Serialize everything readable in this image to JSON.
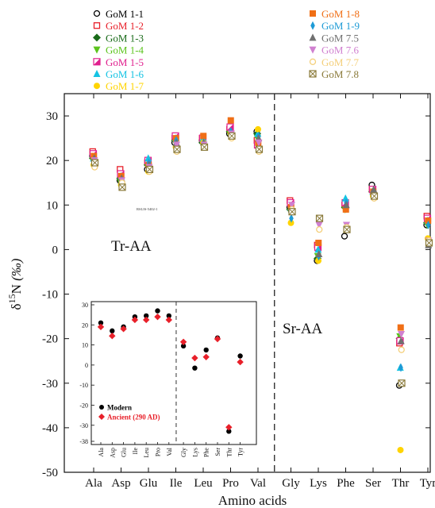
{
  "chart_data": [
    {
      "type": "scatter",
      "xlabel": "Amino acids",
      "ylabel": "δ15N (‰)",
      "ylabel_parts": {
        "delta": "δ",
        "mass": "15",
        "element": "N",
        "unit": "(‰)"
      },
      "ylim": [
        -50,
        35
      ],
      "yticks": [
        30,
        20,
        10,
        0,
        -10,
        -20,
        -30,
        -40,
        -50
      ],
      "categories": [
        "Ala",
        "Asp",
        "Glu",
        "Ile",
        "Leu",
        "Pro",
        "Val",
        "Gly",
        "Lys",
        "Phe",
        "Ser",
        "Thr",
        "Tyr"
      ],
      "divider_after": "Val",
      "region_labels": [
        "Tr-AA",
        "Sr-AA"
      ],
      "small_label": "RSLIS-5402-1",
      "grid": false,
      "legend_position": "top",
      "series": [
        {
          "name": "GoM 1-1",
          "color": "#000000",
          "marker": "circle-open",
          "values": [
            21,
            15.5,
            18,
            24,
            24.5,
            26,
            26.5,
            9.5,
            -2.5,
            3,
            14.5,
            -30.5,
            5.5
          ]
        },
        {
          "name": "GoM 1-2",
          "color": "#e8202a",
          "marker": "square-open",
          "values": [
            22,
            18,
            19.5,
            25,
            25,
            27,
            24.5,
            11,
            1,
            10,
            13.5,
            -21,
            7.5
          ]
        },
        {
          "name": "GoM 1-3",
          "color": "#1a6b1a",
          "marker": "diamond",
          "values": [
            20.5,
            16,
            19,
            24.5,
            24,
            26.5,
            26,
            9,
            -2,
            9.5,
            13,
            -20,
            6
          ]
        },
        {
          "name": "GoM 1-4",
          "color": "#5cc41d",
          "marker": "triangle-down",
          "values": [
            20,
            15,
            18.5,
            24,
            24.5,
            26,
            25,
            10,
            -1.5,
            9,
            12.5,
            -19.5,
            5.5
          ]
        },
        {
          "name": "GoM 1-5",
          "color": "#e0208e",
          "marker": "square-half",
          "values": [
            21.5,
            17,
            20,
            25.5,
            25,
            27.5,
            23.5,
            10.5,
            0.5,
            10.5,
            13.5,
            -20.5,
            7
          ]
        },
        {
          "name": "GoM 1-6",
          "color": "#15c3e3",
          "marker": "triangle-up",
          "values": [
            20.5,
            16.5,
            20.5,
            25,
            25,
            26.5,
            26,
            9.5,
            0,
            11.5,
            13,
            -26.5,
            6.5
          ]
        },
        {
          "name": "GoM 1-7",
          "color": "#ffd400",
          "marker": "circle",
          "values": [
            19,
            14.5,
            17.5,
            23,
            24,
            26,
            27,
            6,
            -2.5,
            9,
            12,
            -45,
            2.5
          ]
        },
        {
          "name": "GoM 1-8",
          "color": "#f06f16",
          "marker": "square",
          "values": [
            21,
            16.5,
            19,
            25,
            25.5,
            29,
            24,
            9.5,
            1.5,
            9,
            13,
            -17.5,
            6.5
          ]
        },
        {
          "name": "GoM 1-9",
          "color": "#1e9bd6",
          "marker": "diamond-narrow",
          "values": [
            20,
            15.5,
            19.5,
            24.5,
            24,
            26.5,
            25.5,
            7,
            -1.5,
            10.5,
            13,
            -26.5,
            5.5
          ]
        },
        {
          "name": "GoM 7.5",
          "color": "#707070",
          "marker": "triangle-up-gray",
          "values": [
            20.5,
            16,
            19,
            24,
            24,
            26,
            25,
            9,
            -1,
            10,
            13.5,
            -20.5,
            1
          ]
        },
        {
          "name": "GoM 7.6",
          "color": "#d080d0",
          "marker": "triangle-down-pink",
          "values": [
            20,
            15.5,
            18.5,
            23.5,
            23.5,
            26,
            24,
            10,
            5.5,
            5.5,
            12,
            -19,
            2
          ]
        },
        {
          "name": "GoM 7.7",
          "color": "#f4cf7a",
          "marker": "circle-open-yellow",
          "values": [
            18.5,
            15,
            17.5,
            22,
            23,
            25,
            22,
            9,
            4.5,
            5,
            11.5,
            -22.5,
            2
          ]
        },
        {
          "name": "GoM 7.8",
          "color": "#8a7a3a",
          "marker": "square-cross",
          "values": [
            19.5,
            14,
            18,
            22.5,
            23,
            25.5,
            22.5,
            8.5,
            7,
            4.5,
            12,
            -30,
            1.5
          ]
        }
      ]
    },
    {
      "type": "scatter",
      "inset": true,
      "ylim": [
        -38,
        30
      ],
      "yticks": [
        30,
        20,
        10,
        0,
        -10,
        -20,
        -30,
        -38
      ],
      "categories": [
        "Ala",
        "Asp",
        "Glu",
        "Ile",
        "Leu",
        "Pro",
        "Val",
        "Gly",
        "Lys",
        "Phe",
        "Ser",
        "Thr",
        "Tyr"
      ],
      "divider_after": "Val",
      "series": [
        {
          "name": "Modern",
          "color": "#000000",
          "marker": "circle",
          "values": [
            21,
            17,
            19,
            24,
            24.5,
            27,
            24.5,
            9.5,
            -1.5,
            7.5,
            13.5,
            -33,
            4.5
          ]
        },
        {
          "name": "Ancient (290 AD)",
          "color": "#e8202a",
          "marker": "diamond",
          "values": [
            19,
            14.5,
            18,
            22.5,
            22.5,
            24,
            22.5,
            11.5,
            3.5,
            4,
            13,
            -31,
            1.5
          ]
        }
      ]
    }
  ]
}
